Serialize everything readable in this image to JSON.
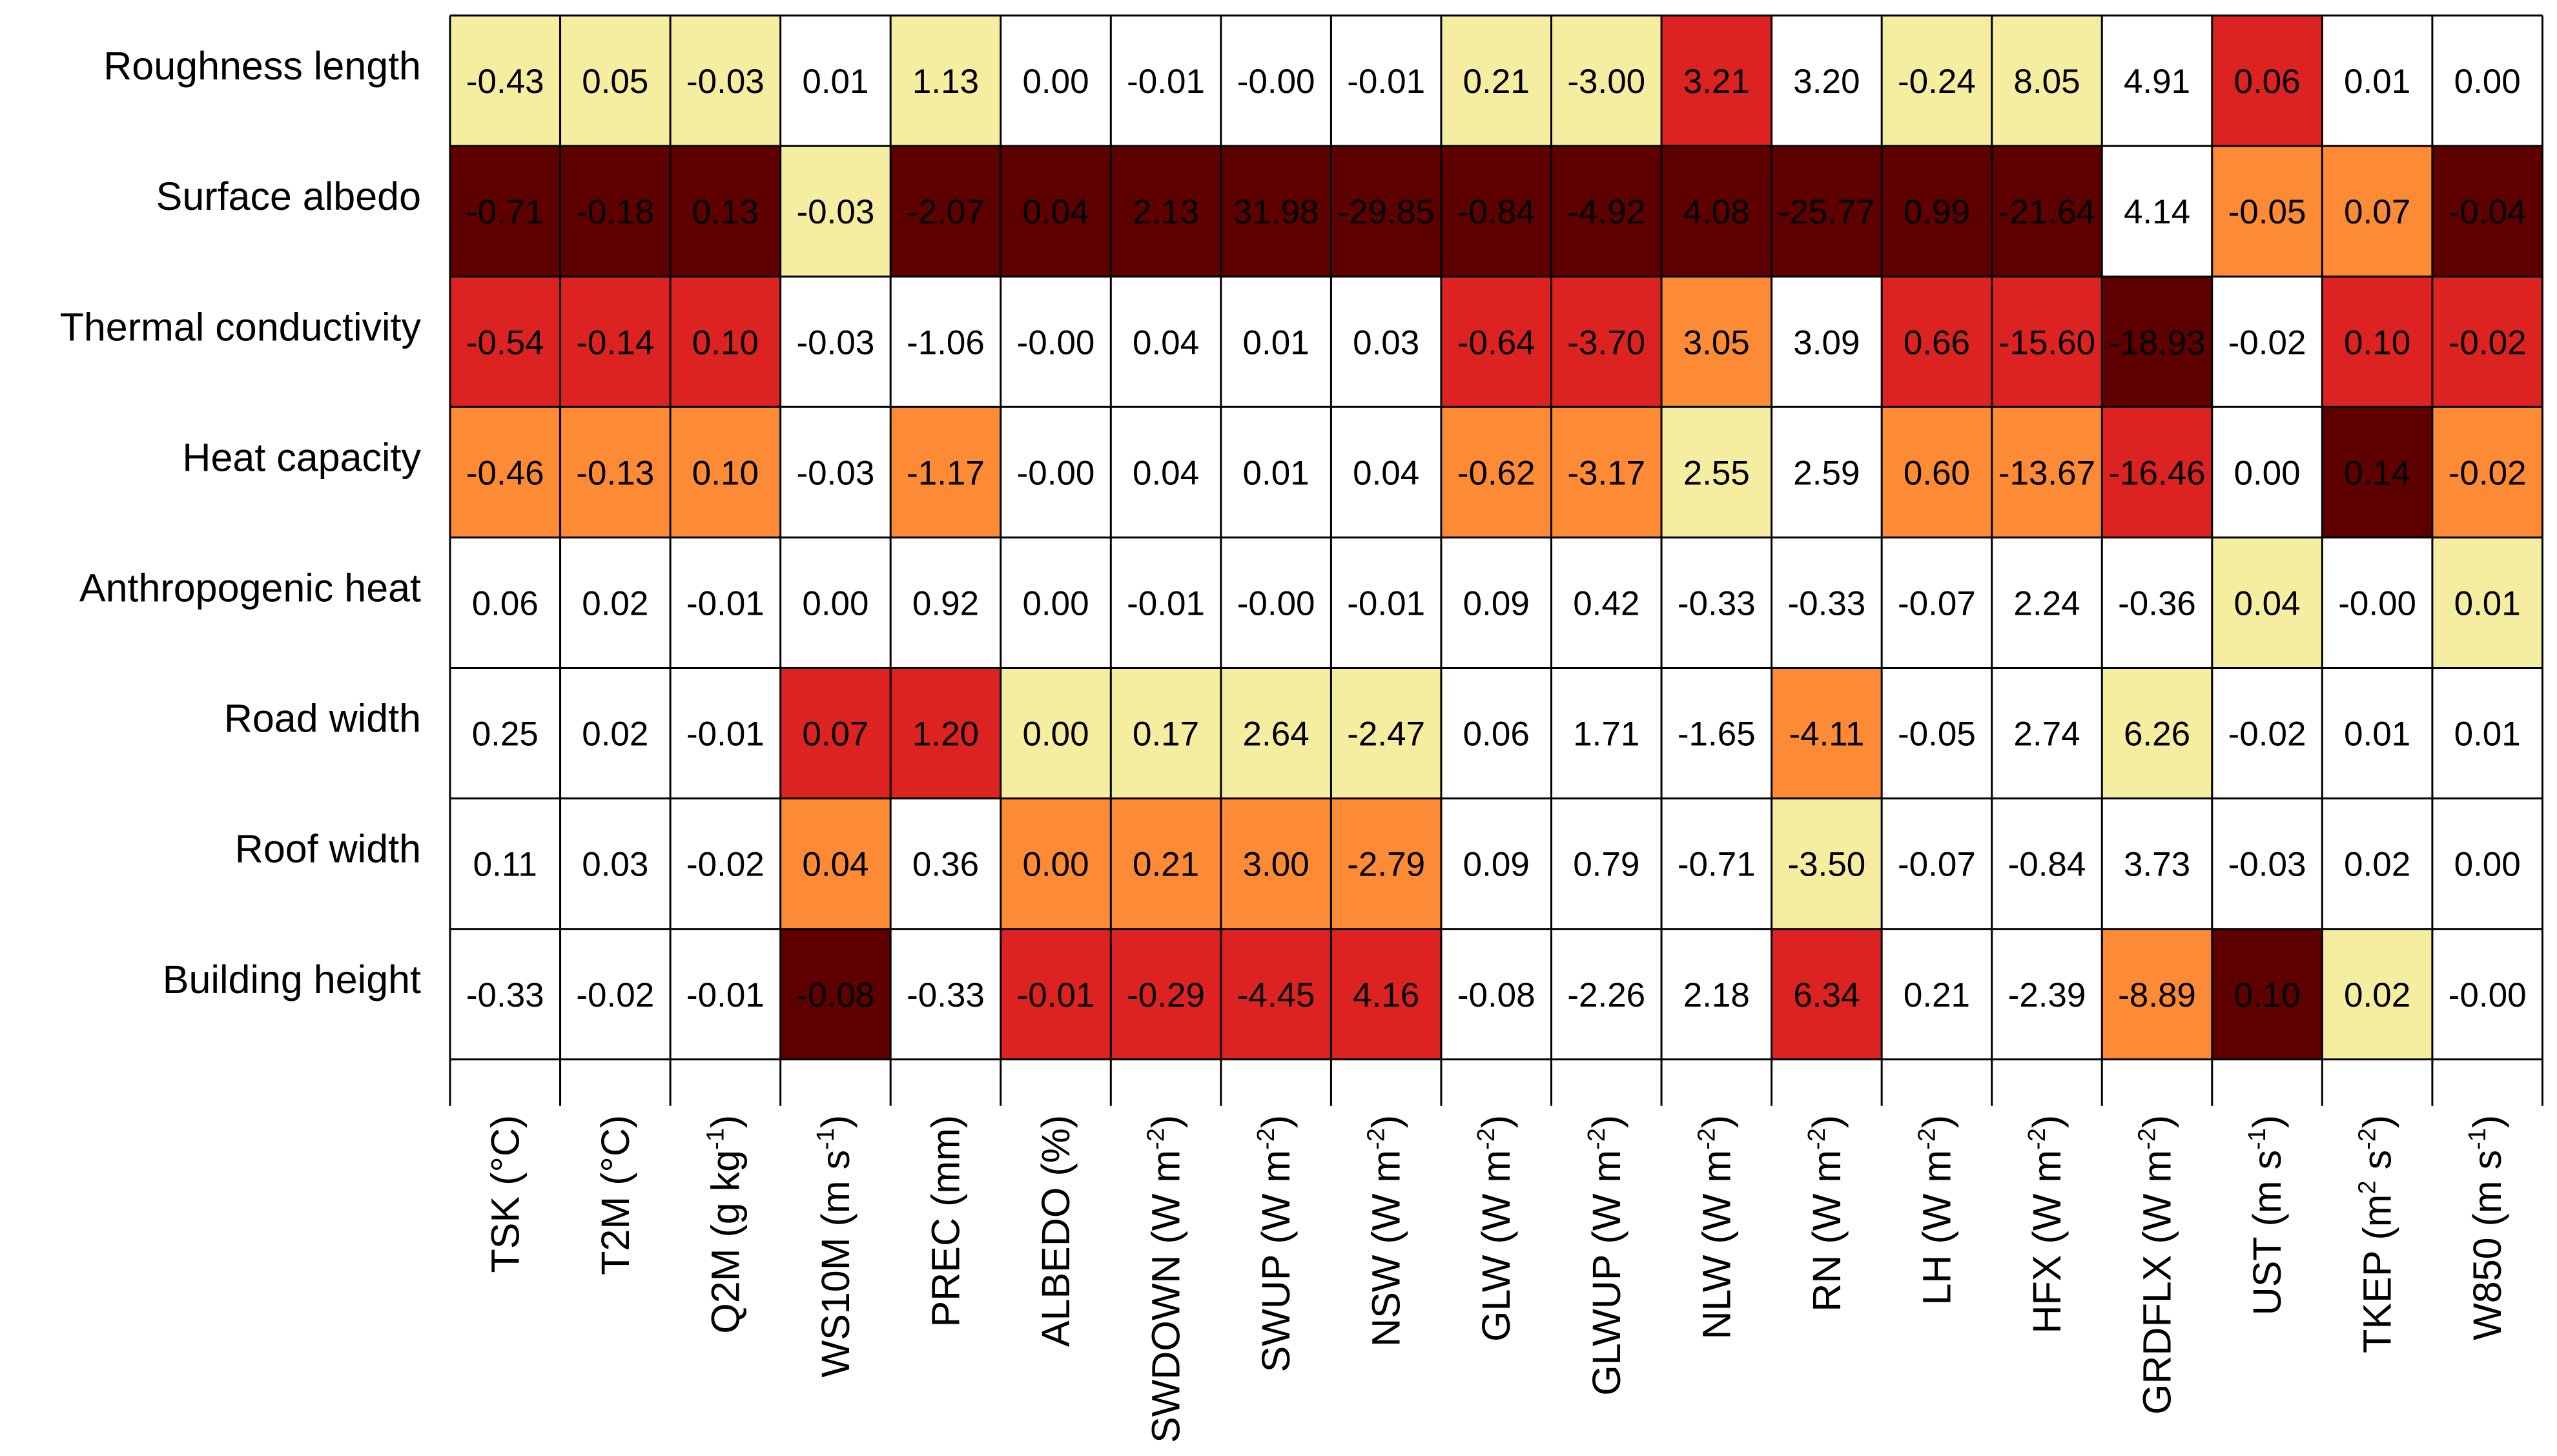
{
  "chart_data": {
    "type": "heatmap",
    "rows": [
      "Roughness length",
      "Surface albedo",
      "Thermal conductivity",
      "Heat capacity",
      "Anthropogenic heat",
      "Road width",
      "Roof width",
      "Building height"
    ],
    "columns": [
      {
        "name": "TSK",
        "unit": "(°C)",
        "sup": ""
      },
      {
        "name": "T2M",
        "unit": "(°C)",
        "sup": ""
      },
      {
        "name": "Q2M",
        "unit": "(g kg",
        "sup": "-1"
      },
      {
        "name": "WS10M",
        "unit": "(m s",
        "sup": "-1"
      },
      {
        "name": "PREC",
        "unit": "(mm)",
        "sup": ""
      },
      {
        "name": "ALBEDO",
        "unit": "(%)",
        "sup": ""
      },
      {
        "name": "SWDOWN",
        "unit": "(W m",
        "sup": "-2"
      },
      {
        "name": "SWUP",
        "unit": "(W m",
        "sup": "-2"
      },
      {
        "name": "NSW",
        "unit": "(W m",
        "sup": "-2"
      },
      {
        "name": "GLW",
        "unit": "(W m",
        "sup": "-2"
      },
      {
        "name": "GLWUP",
        "unit": "(W m",
        "sup": "-2"
      },
      {
        "name": "NLW",
        "unit": "(W m",
        "sup": "-2"
      },
      {
        "name": "RN",
        "unit": "(W m",
        "sup": "-2"
      },
      {
        "name": "LH",
        "unit": "(W m",
        "sup": "-2"
      },
      {
        "name": "HFX",
        "unit": "(W m",
        "sup": "-2"
      },
      {
        "name": "GRDFLX",
        "unit": "(W m",
        "sup": "-2"
      },
      {
        "name": "UST",
        "unit": "(m s",
        "sup": "-1"
      },
      {
        "name": "TKEP",
        "unit": "(m",
        "sup": "2",
        "unit2": " s",
        "sup2": "-2"
      },
      {
        "name": "W850",
        "unit": "(m s",
        "sup": "-1"
      }
    ],
    "values": [
      [
        "-0.43",
        "0.05",
        "-0.03",
        "0.01",
        "1.13",
        "0.00",
        "-0.01",
        "-0.00",
        "-0.01",
        "0.21",
        "-3.00",
        "3.21",
        "3.20",
        "-0.24",
        "8.05",
        "4.91",
        "0.06",
        "0.01",
        "0.00"
      ],
      [
        "-0.71",
        "-0.18",
        "0.13",
        "-0.03",
        "-2.07",
        "0.04",
        "2.13",
        "31.98",
        "-29.85",
        "-0.84",
        "-4.92",
        "4.08",
        "-25.77",
        "0.99",
        "-21.64",
        "4.14",
        "-0.05",
        "0.07",
        "-0.04"
      ],
      [
        "-0.54",
        "-0.14",
        "0.10",
        "-0.03",
        "-1.06",
        "-0.00",
        "0.04",
        "0.01",
        "0.03",
        "-0.64",
        "-3.70",
        "3.05",
        "3.09",
        "0.66",
        "-15.60",
        "-18.93",
        "-0.02",
        "0.10",
        "-0.02"
      ],
      [
        "-0.46",
        "-0.13",
        "0.10",
        "-0.03",
        "-1.17",
        "-0.00",
        "0.04",
        "0.01",
        "0.04",
        "-0.62",
        "-3.17",
        "2.55",
        "2.59",
        "0.60",
        "-13.67",
        "-16.46",
        "0.00",
        "0.14",
        "-0.02"
      ],
      [
        "0.06",
        "0.02",
        "-0.01",
        "0.00",
        "0.92",
        "0.00",
        "-0.01",
        "-0.00",
        "-0.01",
        "0.09",
        "0.42",
        "-0.33",
        "-0.33",
        "-0.07",
        "2.24",
        "-0.36",
        "0.04",
        "-0.00",
        "0.01"
      ],
      [
        "0.25",
        "0.02",
        "-0.01",
        "0.07",
        "1.20",
        "0.00",
        "0.17",
        "2.64",
        "-2.47",
        "0.06",
        "1.71",
        "-1.65",
        "-4.11",
        "-0.05",
        "2.74",
        "6.26",
        "-0.02",
        "0.01",
        "0.01"
      ],
      [
        "0.11",
        "0.03",
        "-0.02",
        "0.04",
        "0.36",
        "0.00",
        "0.21",
        "3.00",
        "-2.79",
        "0.09",
        "0.79",
        "-0.71",
        "-3.50",
        "-0.07",
        "-0.84",
        "3.73",
        "-0.03",
        "0.02",
        "0.00"
      ],
      [
        "-0.33",
        "-0.02",
        "-0.01",
        "-0.08",
        "-0.33",
        "-0.01",
        "-0.29",
        "-4.45",
        "4.16",
        "-0.08",
        "-2.26",
        "2.18",
        "6.34",
        "0.21",
        "-2.39",
        "-8.89",
        "0.10",
        "0.02",
        "-0.00"
      ]
    ],
    "rank": [
      [
        3,
        3,
        3,
        0,
        3,
        0,
        0,
        0,
        0,
        3,
        3,
        1,
        0,
        3,
        3,
        0,
        1,
        0,
        0
      ],
      [
        4,
        4,
        4,
        3,
        4,
        4,
        4,
        4,
        4,
        4,
        4,
        4,
        4,
        4,
        4,
        0,
        2,
        2,
        4
      ],
      [
        1,
        1,
        1,
        0,
        0,
        0,
        0,
        0,
        0,
        1,
        1,
        2,
        0,
        1,
        1,
        4,
        0,
        1,
        1
      ],
      [
        2,
        2,
        2,
        0,
        2,
        0,
        0,
        0,
        0,
        2,
        2,
        3,
        0,
        2,
        2,
        1,
        0,
        4,
        2
      ],
      [
        0,
        0,
        0,
        0,
        0,
        0,
        0,
        0,
        0,
        0,
        0,
        0,
        0,
        0,
        0,
        0,
        3,
        0,
        3
      ],
      [
        0,
        0,
        0,
        1,
        1,
        3,
        3,
        3,
        3,
        0,
        0,
        0,
        2,
        0,
        0,
        3,
        0,
        0,
        0
      ],
      [
        0,
        0,
        0,
        2,
        0,
        2,
        2,
        2,
        2,
        0,
        0,
        0,
        3,
        0,
        0,
        0,
        0,
        0,
        0
      ],
      [
        0,
        0,
        0,
        4,
        0,
        1,
        1,
        1,
        1,
        0,
        0,
        0,
        1,
        0,
        0,
        2,
        4,
        3,
        0
      ]
    ],
    "palette": [
      "#ffffff",
      "#dd2222",
      "#fd8a34",
      "#f5eda0",
      "#5e0000"
    ],
    "grid_color": "#000000",
    "text_color": "#000000"
  }
}
